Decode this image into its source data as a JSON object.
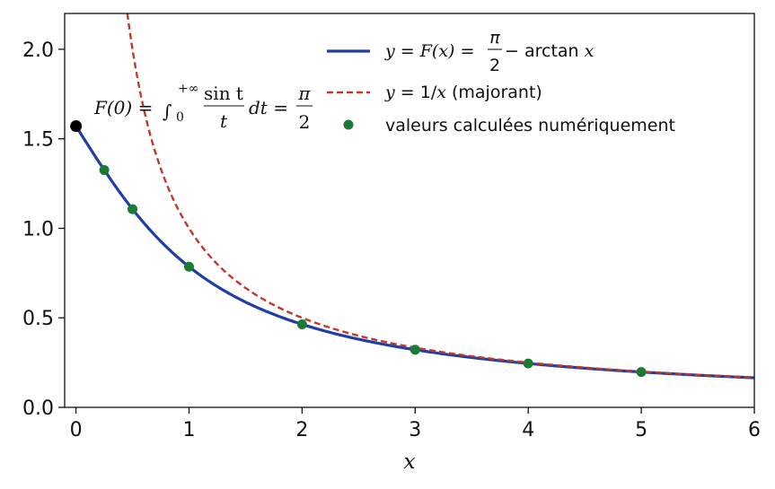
{
  "chart_data": {
    "type": "line",
    "title": "",
    "xlabel": "x",
    "ylabel": "",
    "xlim": [
      -0.1,
      6
    ],
    "ylim": [
      0,
      2.2
    ],
    "xticks": [
      0,
      1,
      2,
      3,
      4,
      5,
      6
    ],
    "yticks": [
      0.0,
      0.5,
      1.0,
      1.5,
      2.0
    ],
    "xtick_labels": [
      "0",
      "1",
      "2",
      "3",
      "4",
      "5",
      "6"
    ],
    "ytick_labels": [
      "0.0",
      "0.5",
      "1.0",
      "1.5",
      "2.0"
    ],
    "grid": false,
    "legend_position": "top-right",
    "series": [
      {
        "name": "y = F(x) = π/2 − arctan x",
        "kind": "line",
        "style": "solid",
        "color": "#1f3ea8",
        "x": [
          0,
          0.25,
          0.5,
          0.75,
          1,
          1.5,
          2,
          2.5,
          3,
          3.5,
          4,
          4.5,
          5,
          5.5,
          6
        ],
        "y": [
          1.5708,
          1.3258,
          1.1071,
          0.9273,
          0.7854,
          0.588,
          0.4636,
          0.3805,
          0.3217,
          0.2783,
          0.245,
          0.2187,
          0.1974,
          0.1799,
          0.1651
        ]
      },
      {
        "name": "y = 1/x (majorant)",
        "kind": "line",
        "style": "dashed",
        "color": "#c0392b",
        "x": [
          0.4545,
          0.5,
          0.6,
          0.75,
          1,
          1.25,
          1.5,
          2,
          2.5,
          3,
          4,
          5,
          6
        ],
        "y": [
          2.2,
          2.0,
          1.6667,
          1.3333,
          1.0,
          0.8,
          0.6667,
          0.5,
          0.4,
          0.3333,
          0.25,
          0.2,
          0.1667
        ]
      },
      {
        "name": "valeurs calculées numériquement",
        "kind": "scatter",
        "color": "#1b7a34",
        "x": [
          0.25,
          0.5,
          1,
          2,
          3,
          4,
          5
        ],
        "y": [
          1.3258,
          1.1071,
          0.7854,
          0.4636,
          0.3217,
          0.245,
          0.1974
        ]
      }
    ],
    "highlight_point": {
      "x": 0,
      "y": 1.5708,
      "color": "#000000"
    },
    "annotation": {
      "lhs": "F(0) = ",
      "integral": "∫",
      "upper": "+∞",
      "lower": "0",
      "num": "sin t",
      "den": "t",
      "dt": "dt = ",
      "rhs_num": "π",
      "rhs_den": "2"
    },
    "legend": {
      "entry1": {
        "pre": "y",
        "eq1": " = ",
        "fx": "F(x)",
        "eq2": " = ",
        "num": "π",
        "den": "2",
        "post": " − arctan ",
        "xvar": "x"
      },
      "entry2": {
        "pre": "y",
        "mid": " = 1/",
        "xvar": "x",
        "post": " (majorant)"
      },
      "entry3": {
        "text": "valeurs calculées numériquement"
      }
    }
  }
}
